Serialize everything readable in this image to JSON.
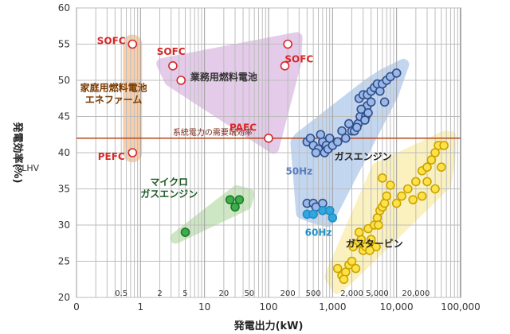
{
  "chart_data": {
    "type": "scatter",
    "xlabel": "発電出力(kW)",
    "ylabel": "発電効率(%)",
    "note": "※LHV",
    "x_scale": "log",
    "xlim": [
      0.1,
      100000
    ],
    "ylim": [
      20,
      60
    ],
    "x_ticks": [
      {
        "value": 0.1,
        "label": "0"
      },
      {
        "value": 1,
        "label": "1"
      },
      {
        "value": 10,
        "label": "10"
      },
      {
        "value": 100,
        "label": "100"
      },
      {
        "value": 1000,
        "label": "1,000"
      },
      {
        "value": 10000,
        "label": "10,000"
      },
      {
        "value": 100000,
        "label": "100,000"
      }
    ],
    "y_ticks": [
      20,
      25,
      30,
      35,
      40,
      45,
      50,
      55,
      60
    ],
    "grid": true,
    "range_markers": [
      {
        "value": 0.5,
        "label": "0.5"
      },
      {
        "value": 2,
        "label": "2"
      },
      {
        "value": 5,
        "label": "5"
      },
      {
        "value": 20,
        "label": "20"
      },
      {
        "value": 50,
        "label": "50"
      },
      {
        "value": 200,
        "label": "200"
      },
      {
        "value": 500,
        "label": "500"
      },
      {
        "value": 2000,
        "label": "2,000"
      },
      {
        "value": 5000,
        "label": "5,000"
      },
      {
        "value": 20000,
        "label": "20,000"
      }
    ],
    "reference_line": {
      "y": 42,
      "label": "系統電力の需要端効率",
      "color": "#b5451b"
    },
    "series": [
      {
        "name": "家庭用燃料電池 エネファーム",
        "color": "#d62828",
        "fill": "#ffffff",
        "region": "#f6c79e",
        "points": [
          [
            0.75,
            55
          ],
          [
            0.75,
            40
          ]
        ]
      },
      {
        "name": "業務用燃料電池",
        "color": "#d62828",
        "fill": "#ffffff",
        "region": "#e0c3e6",
        "points": [
          [
            3.2,
            52
          ],
          [
            4.3,
            50
          ],
          [
            200,
            55
          ],
          [
            180,
            52
          ],
          [
            100,
            42
          ]
        ]
      },
      {
        "name": "マイクロ ガスエンジン",
        "color": "#1e7a2e",
        "fill": "#3cae4a",
        "region": "#c5e3b8",
        "points": [
          [
            5,
            29
          ],
          [
            25,
            33.5
          ],
          [
            35,
            33.5
          ],
          [
            30,
            32.5
          ]
        ]
      },
      {
        "name": "ガスエンジン",
        "color": "#2f4f8a",
        "fill": "#9bb8e8",
        "region": "#b9cfee",
        "points": [
          [
            400,
            41.5
          ],
          [
            500,
            41
          ],
          [
            600,
            40.5
          ],
          [
            700,
            41.5
          ],
          [
            800,
            41
          ],
          [
            900,
            42
          ],
          [
            450,
            42
          ],
          [
            550,
            40
          ],
          [
            650,
            42.5
          ],
          [
            750,
            40
          ],
          [
            850,
            40.5
          ],
          [
            1000,
            41
          ],
          [
            1200,
            41.5
          ],
          [
            1400,
            43
          ],
          [
            1600,
            42
          ],
          [
            1800,
            44
          ],
          [
            2000,
            43
          ],
          [
            2200,
            43
          ],
          [
            2500,
            44
          ],
          [
            2700,
            45
          ],
          [
            3000,
            46
          ],
          [
            3300,
            45
          ],
          [
            3500,
            46.5
          ],
          [
            4000,
            47
          ],
          [
            2600,
            47.5
          ],
          [
            3000,
            48
          ],
          [
            3500,
            48
          ],
          [
            4000,
            48.5
          ],
          [
            4500,
            49
          ],
          [
            5000,
            49.5
          ],
          [
            5500,
            48.5
          ],
          [
            6000,
            49.5
          ],
          [
            7000,
            50
          ],
          [
            8000,
            50.5
          ],
          [
            10000,
            51
          ],
          [
            6500,
            47
          ],
          [
            2800,
            46
          ],
          [
            3200,
            44.5
          ],
          [
            3600,
            45.5
          ],
          [
            2400,
            43.5
          ],
          [
            400,
            33
          ],
          [
            500,
            33
          ],
          [
            550,
            32.5
          ],
          [
            700,
            33
          ],
          [
            900,
            32
          ]
        ]
      },
      {
        "name": "50Hz",
        "color": "#5a7dbd",
        "fill": "#ffffff",
        "region": "",
        "points": []
      },
      {
        "name": "60Hz",
        "color": "#1f8fc7",
        "fill": "#33a6dd",
        "region": "",
        "points": [
          [
            400,
            31.5
          ],
          [
            500,
            31.5
          ],
          [
            700,
            32
          ],
          [
            900,
            32
          ],
          [
            1000,
            31
          ]
        ]
      },
      {
        "name": "ガスタービン",
        "color": "#c9a400",
        "fill": "#ffe24a",
        "region": "#fbefb4",
        "points": [
          [
            1200,
            24
          ],
          [
            1400,
            23
          ],
          [
            1600,
            23.5
          ],
          [
            1800,
            24.5
          ],
          [
            2000,
            25
          ],
          [
            1500,
            22.5
          ],
          [
            2300,
            24
          ],
          [
            2500,
            27.5
          ],
          [
            2800,
            28
          ],
          [
            3000,
            26.5
          ],
          [
            3300,
            27
          ],
          [
            3600,
            29.5
          ],
          [
            4000,
            28
          ],
          [
            4500,
            30
          ],
          [
            5000,
            31
          ],
          [
            5500,
            32
          ],
          [
            6000,
            32.5
          ],
          [
            5200,
            30
          ],
          [
            6500,
            33
          ],
          [
            7000,
            34
          ],
          [
            8000,
            35.5
          ],
          [
            4800,
            27
          ],
          [
            3800,
            26.5
          ],
          [
            6000,
            36.5
          ],
          [
            10000,
            33
          ],
          [
            12000,
            34
          ],
          [
            15000,
            35
          ],
          [
            18000,
            33.5
          ],
          [
            20000,
            36
          ],
          [
            25000,
            37.5
          ],
          [
            30000,
            38
          ],
          [
            35000,
            39
          ],
          [
            40000,
            40
          ],
          [
            45000,
            41
          ],
          [
            55000,
            41
          ],
          [
            30000,
            36
          ],
          [
            40000,
            35
          ],
          [
            50000,
            38
          ],
          [
            25000,
            34
          ],
          [
            2100,
            27
          ],
          [
            2600,
            29
          ]
        ]
      }
    ],
    "labels": [
      {
        "text": "SOFC",
        "x": 0.35,
        "y": 55,
        "color": "#d62828"
      },
      {
        "text": "SOFC",
        "x": 3,
        "y": 53.5,
        "color": "#d62828"
      },
      {
        "text": "SOFC",
        "x": 300,
        "y": 52.5,
        "color": "#d62828"
      },
      {
        "text": "PAFC",
        "x": 40,
        "y": 43,
        "color": "#d62828"
      },
      {
        "text": "PEFC",
        "x": 0.35,
        "y": 39,
        "color": "#d62828"
      }
    ]
  }
}
